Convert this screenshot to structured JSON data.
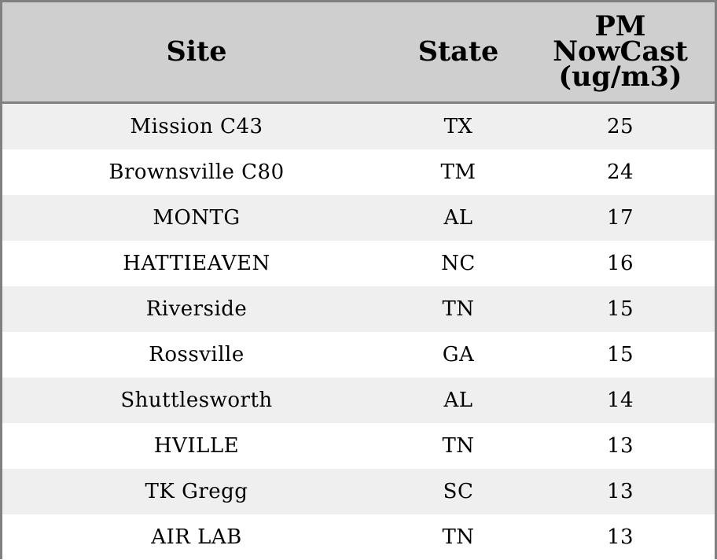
{
  "chart_data": {
    "type": "table",
    "columns": [
      "Site",
      "State",
      "PM\nNowCast\n(ug/m3)"
    ],
    "rows": [
      [
        "Mission C43",
        "TX",
        "25"
      ],
      [
        "Brownsville C80",
        "TM",
        "24"
      ],
      [
        "MONTG",
        "AL",
        "17"
      ],
      [
        "HATTIEAVEN",
        "NC",
        "16"
      ],
      [
        "Riverside",
        "TN",
        "15"
      ],
      [
        "Rossville",
        "GA",
        "15"
      ],
      [
        "Shuttlesworth",
        "AL",
        "14"
      ],
      [
        "HVILLE",
        "TN",
        "13"
      ],
      [
        "TK Gregg",
        "SC",
        "13"
      ],
      [
        "AIR LAB",
        "TN",
        "13"
      ]
    ]
  },
  "colors": {
    "header_background": "#cfcfcf",
    "stripe_background": "#efefef",
    "border": "#808080"
  }
}
